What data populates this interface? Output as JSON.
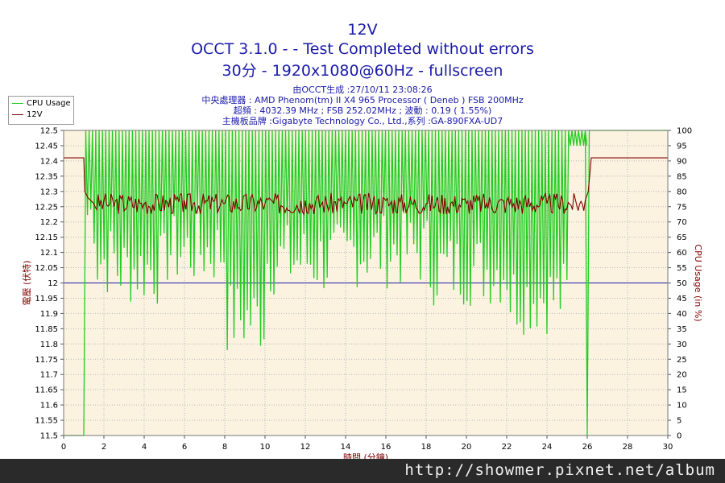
{
  "header": {
    "title": "12V",
    "subtitle1": "OCCT 3.1.0 -  - Test Completed without errors",
    "subtitle2": "30分 - 1920x1080@60Hz - fullscreen"
  },
  "info": {
    "line1": "由OCCT生成 :27/10/11 23:08:26",
    "line2": "中央處理器 : AMD Phenom(tm) II X4 965 Processor ( Deneb ) FSB 200MHz",
    "line3": "超頻 : 4032.39 MHz ; FSB 252.02MHz ; 波動 : 0.19 ( 1.55%)",
    "line4": "主機板品牌 :Gigabyte Technology Co., Ltd.,系列 :GA-890FXA-UD7"
  },
  "legend": {
    "items": [
      {
        "label": "CPU Usage",
        "color": "#22cc22"
      },
      {
        "label": "12V",
        "color": "#800000"
      }
    ]
  },
  "chart_data": {
    "type": "line",
    "xlabel": "時間 (分鐘)",
    "ylabel_left": "電壓 (伏特)",
    "ylabel_right": "CPU Usage (in %)",
    "xlim": [
      0,
      30
    ],
    "ylim_left": [
      11.5,
      12.5
    ],
    "ylim_right": [
      0,
      100
    ],
    "x_ticks": [
      "0",
      "2",
      "4",
      "6",
      "8",
      "10",
      "12",
      "14",
      "16",
      "18",
      "20",
      "22",
      "24",
      "26",
      "28",
      "30"
    ],
    "y_ticks_left": [
      "11.5",
      "11.55",
      "11.6",
      "11.65",
      "11.7",
      "11.75",
      "11.8",
      "11.85",
      "11.9",
      "11.95",
      "12",
      "12.05",
      "12.1",
      "12.15",
      "12.2",
      "12.25",
      "12.3",
      "12.35",
      "12.4",
      "12.45",
      "12.5"
    ],
    "y_ticks_right": [
      "0",
      "5",
      "10",
      "15",
      "20",
      "25",
      "30",
      "35",
      "40",
      "45",
      "50",
      "55",
      "60",
      "65",
      "70",
      "75",
      "80",
      "85",
      "90",
      "95",
      "100"
    ],
    "reference_line": {
      "value": 12.0,
      "color": "#1a1aa8"
    },
    "grid": true,
    "plot_background": "#fbf3e0",
    "series": [
      {
        "name": "12V",
        "axis": "left",
        "color": "#800000",
        "points": [
          [
            0,
            12.41
          ],
          [
            1.0,
            12.41
          ],
          [
            1.05,
            12.3
          ],
          [
            1.2,
            12.28
          ],
          [
            1.5,
            12.26
          ],
          [
            2,
            12.27
          ],
          [
            4,
            12.26
          ],
          [
            6,
            12.27
          ],
          [
            8,
            12.26
          ],
          [
            10,
            12.26
          ],
          [
            12,
            12.27
          ],
          [
            14,
            12.26
          ],
          [
            16,
            12.27
          ],
          [
            18,
            12.26
          ],
          [
            20,
            12.26
          ],
          [
            22,
            12.27
          ],
          [
            24,
            12.26
          ],
          [
            25.9,
            12.27
          ],
          [
            26.05,
            12.3
          ],
          [
            26.2,
            12.41
          ],
          [
            30,
            12.41
          ]
        ]
      },
      {
        "name": "CPU Usage",
        "axis": "right",
        "color": "#22cc22",
        "points": [
          [
            0,
            0
          ],
          [
            1.0,
            0
          ],
          [
            1.1,
            100
          ],
          [
            1.3,
            60
          ],
          [
            1.5,
            100
          ],
          [
            2,
            45
          ],
          [
            2.5,
            100
          ],
          [
            4,
            42
          ],
          [
            5,
            100
          ],
          [
            6,
            48
          ],
          [
            8,
            100
          ],
          [
            9.6,
            26
          ],
          [
            10,
            100
          ],
          [
            12,
            45
          ],
          [
            14,
            100
          ],
          [
            16,
            48
          ],
          [
            18,
            100
          ],
          [
            20,
            42
          ],
          [
            22,
            100
          ],
          [
            24.6,
            33
          ],
          [
            25,
            100
          ],
          [
            25.9,
            100
          ],
          [
            26.0,
            0
          ],
          [
            26.1,
            100
          ],
          [
            30,
            100
          ]
        ]
      }
    ]
  },
  "footer": {
    "text": "http://showmer.pixnet.net/album"
  }
}
